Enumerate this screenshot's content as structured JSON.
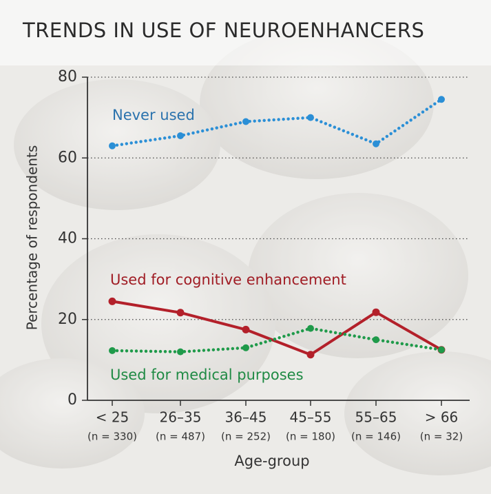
{
  "chart_data": {
    "type": "line",
    "title": "TRENDS IN USE OF NEUROENHANCERS",
    "x_label": "Age-group",
    "y_label": "Percentage of respondents",
    "categories": [
      "< 25",
      "26–35",
      "36–45",
      "45–55",
      "55–65",
      "> 66"
    ],
    "sample_sizes": [
      "(n = 330)",
      "(n = 487)",
      "(n = 252)",
      "(n = 180)",
      "(n = 146)",
      "(n = 32)"
    ],
    "ylim": [
      0,
      80
    ],
    "yticks": [
      0,
      20,
      40,
      60,
      80
    ],
    "grid": true,
    "series": [
      {
        "name": "Never used",
        "color": "#2b8fd6",
        "style": "dotted",
        "values": [
          63,
          65.5,
          69,
          70,
          63.5,
          74.5
        ]
      },
      {
        "name": "Used for cognitive enhancement",
        "color": "#b3202a",
        "style": "solid",
        "values": [
          24.5,
          21.7,
          17.5,
          11.3,
          21.8,
          12.5
        ]
      },
      {
        "name": "Used for medical purposes",
        "color": "#1f9a4a",
        "style": "dotted",
        "values": [
          12.3,
          12,
          13,
          17.8,
          15,
          12.5
        ]
      }
    ]
  }
}
